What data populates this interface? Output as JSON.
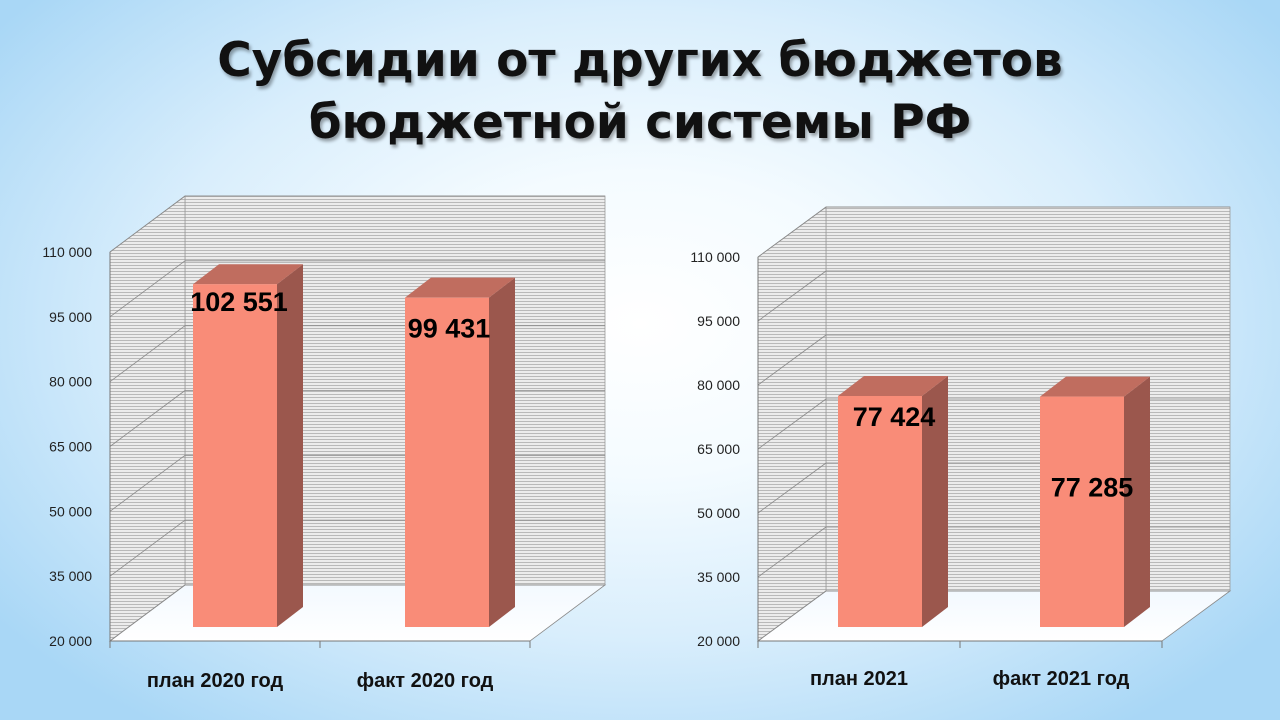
{
  "title": {
    "line1": "Субсидии от других бюджетов",
    "line2": "бюджетной системы РФ"
  },
  "chart_data": [
    {
      "type": "bar",
      "categories": [
        "план 2020 год",
        "факт 2020 год"
      ],
      "values": [
        102551,
        99431
      ],
      "value_labels": [
        "102 551",
        "99 431"
      ],
      "title": "",
      "xlabel": "",
      "ylabel": "",
      "ylim": [
        20000,
        110000
      ],
      "yticks": [
        20000,
        35000,
        50000,
        65000,
        80000,
        95000,
        110000
      ],
      "ytick_labels": [
        "20 000",
        "35 000",
        "50 000",
        "65 000",
        "80 000",
        "95 000",
        "110 000"
      ],
      "grid": true,
      "three_d": true,
      "bar_color": "#f98c78",
      "bar_side_color": "#9b574d",
      "bar_top_color": "#c06d5f"
    },
    {
      "type": "bar",
      "categories": [
        "план 2021",
        "факт 2021 год"
      ],
      "values": [
        77424,
        77285
      ],
      "value_labels": [
        "77 424",
        "77 285"
      ],
      "title": "",
      "xlabel": "",
      "ylabel": "",
      "ylim": [
        20000,
        110000
      ],
      "yticks": [
        20000,
        35000,
        50000,
        65000,
        80000,
        95000,
        110000
      ],
      "ytick_labels": [
        "20 000",
        "35 000",
        "50 000",
        "65 000",
        "80 000",
        "95 000",
        "110 000"
      ],
      "grid": true,
      "three_d": true,
      "bar_color": "#f98c78",
      "bar_side_color": "#9b574d",
      "bar_top_color": "#c06d5f"
    }
  ]
}
